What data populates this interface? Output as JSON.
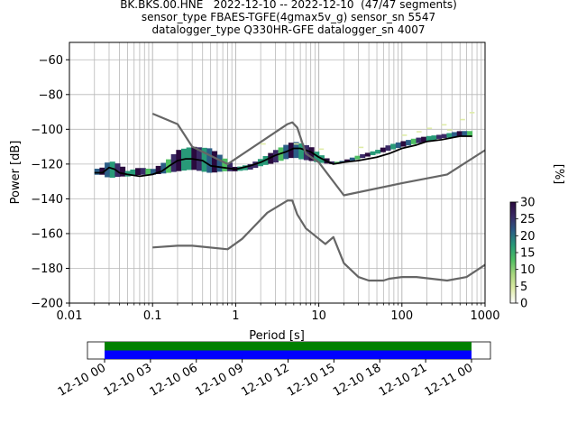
{
  "title_lines": [
    "BK.BKS.00.HNE   2022-12-10 -- 2022-12-10  (47/47 segments)",
    "sensor_type FBAES-TGFE(4gmax5v_g) sensor_sn 5547",
    "datalogger_type Q330HR-GFE datalogger_sn 4007"
  ],
  "chart_data": [
    {
      "type": "heatmap",
      "xlabel": "Period [s]",
      "ylabel": "Power [dB]",
      "x_scale": "log",
      "xlim": [
        0.01,
        1000
      ],
      "ylim": [
        -200,
        -50
      ],
      "xticks": [
        0.01,
        0.1,
        1,
        10,
        100,
        1000
      ],
      "xtick_labels": [
        "0.01",
        "0.1",
        "1",
        "10",
        "100",
        "1000"
      ],
      "yticks": [
        -200,
        -180,
        -160,
        -140,
        -120,
        -100,
        -80,
        -60
      ],
      "ytick_labels": [
        "−200",
        "−180",
        "−160",
        "−140",
        "−120",
        "−100",
        "−80",
        "−60"
      ],
      "grid": true,
      "colorbar": {
        "label": "[%]",
        "ticks": [
          0,
          5,
          10,
          15,
          20,
          25,
          30
        ],
        "range": [
          0,
          30
        ],
        "colors": [
          "#ffffff",
          "#dfeca8",
          "#a9d77e",
          "#4fbf62",
          "#289a78",
          "#2b5d86",
          "#3a2a66",
          "#2a0a3e"
        ]
      },
      "density_band": {
        "period": [
          0.02,
          0.025,
          0.03,
          0.04,
          0.05,
          0.07,
          0.1,
          0.15,
          0.2,
          0.3,
          0.5,
          0.7,
          1,
          1.5,
          2,
          3,
          4,
          5,
          6,
          8,
          10,
          15,
          20,
          30,
          50,
          70,
          100,
          150,
          200,
          300,
          500,
          700
        ],
        "low_db": [
          -126,
          -126,
          -128,
          -127,
          -127,
          -126,
          -126,
          -125,
          -124,
          -123,
          -125,
          -124,
          -124,
          -123,
          -121,
          -119,
          -117,
          -116,
          -117,
          -118,
          -119,
          -120,
          -119,
          -117,
          -114,
          -112,
          -110,
          -108,
          -107,
          -105,
          -104,
          -104
        ],
        "high_db": [
          -123,
          -122,
          -118,
          -120,
          -124,
          -122,
          -123,
          -118,
          -112,
          -110,
          -111,
          -116,
          -122,
          -120,
          -117,
          -112,
          -109,
          -107,
          -108,
          -110,
          -114,
          -119,
          -118,
          -115,
          -112,
          -109,
          -107,
          -105,
          -104,
          -103,
          -101,
          -101
        ]
      },
      "series": [
        {
          "name": "",
          "color": "#000000",
          "x": [
            0.02,
            0.025,
            0.03,
            0.035,
            0.04,
            0.05,
            0.07,
            0.1,
            0.13,
            0.16,
            0.2,
            0.25,
            0.3,
            0.4,
            0.5,
            0.7,
            1,
            1.5,
            2,
            3,
            4,
            5,
            6,
            8,
            10,
            12,
            15,
            20,
            30,
            50,
            70,
            100,
            150,
            200,
            300,
            500,
            700
          ],
          "y": [
            -125,
            -125,
            -122,
            -123,
            -125,
            -126,
            -127,
            -126,
            -124,
            -121,
            -118,
            -117,
            -117,
            -118,
            -121,
            -122,
            -123,
            -121,
            -119,
            -115,
            -113,
            -111,
            -111,
            -113,
            -116,
            -118,
            -120,
            -119,
            -118,
            -116,
            -114,
            -111,
            -109,
            -107,
            -106,
            -104,
            -104
          ]
        },
        {
          "name": "",
          "color": "#666666",
          "x": [
            0.1,
            0.2,
            0.3,
            0.8,
            4.2,
            4.8,
            5.5,
            7,
            10,
            20,
            100,
            350,
            1000
          ],
          "y": [
            -91,
            -97,
            -110,
            -120,
            -97,
            -96,
            -99,
            -114,
            -119,
            -138,
            -131,
            -126,
            -112
          ]
        },
        {
          "name": "",
          "color": "#666666",
          "x": [
            0.1,
            0.2,
            0.3,
            0.8,
            1.2,
            2.4,
            4.2,
            4.8,
            5.5,
            7,
            10,
            12,
            15,
            20,
            30,
            40,
            60,
            70,
            100,
            150,
            350,
            600,
            1000
          ],
          "y": [
            -168,
            -167,
            -167,
            -169,
            -163,
            -148,
            -141,
            -141,
            -149,
            -157,
            -163,
            -166,
            -162,
            -177,
            -185,
            -187,
            -187,
            -186,
            -185,
            -185,
            -187,
            -185,
            -178
          ]
        }
      ]
    },
    {
      "type": "bar",
      "xlim": [
        "12-10 00",
        "12-11 00"
      ],
      "xtick_labels": [
        "12-10 00",
        "12-10 03",
        "12-10 06",
        "12-10 09",
        "12-10 12",
        "12-10 15",
        "12-10 18",
        "12-10 21",
        "12-11 00"
      ],
      "series": [
        {
          "name": "",
          "color": "#008000",
          "start_hours": 0,
          "end_hours": 24
        },
        {
          "name": "",
          "color": "#0000ff",
          "start_hours": 0,
          "end_hours": 24
        }
      ]
    }
  ]
}
